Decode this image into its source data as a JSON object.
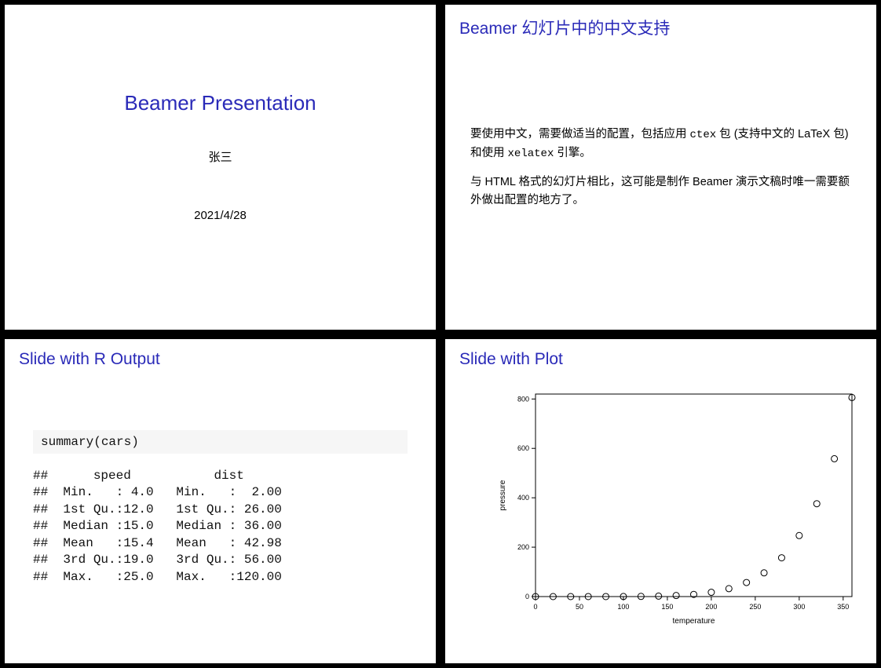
{
  "slide1": {
    "title": "Beamer Presentation",
    "author": "张三",
    "date": "2021/4/28"
  },
  "slide2": {
    "title": "Beamer 幻灯片中的中文支持",
    "para1_a": "要使用中文，需要做适当的配置，包括应用 ",
    "para1_code1": "ctex",
    "para1_b": " 包 (支持中文的 LaTeX 包) 和使用 ",
    "para1_code2": "xelatex",
    "para1_c": " 引擎。",
    "para2": "与 HTML 格式的幻灯片相比，这可能是制作 Beamer 演示文稿时唯一需要额外做出配置的地方了。"
  },
  "slide3": {
    "title": "Slide with R Output",
    "code": "summary(cars)",
    "output": "##      speed           dist\n##  Min.   : 4.0   Min.   :  2.00\n##  1st Qu.:12.0   1st Qu.: 26.00\n##  Median :15.0   Median : 36.00\n##  Mean   :15.4   Mean   : 42.98\n##  3rd Qu.:19.0   3rd Qu.: 56.00\n##  Max.   :25.0   Max.   :120.00"
  },
  "slide4": {
    "title": "Slide with Plot",
    "chart": {
      "type": "scatter",
      "xlabel": "temperature",
      "ylabel": "pressure",
      "xlim": [
        0,
        360
      ],
      "ylim": [
        0,
        820
      ],
      "xticks": [
        0,
        50,
        100,
        150,
        200,
        250,
        300,
        350
      ],
      "yticks": [
        0,
        200,
        400,
        600,
        800
      ],
      "marker": "circle-open",
      "marker_size": 4,
      "marker_color": "#000000",
      "axis_color": "#000000",
      "background_color": "#ffffff",
      "label_fontsize": 10,
      "tick_fontsize": 9,
      "x": [
        0,
        20,
        40,
        60,
        80,
        100,
        120,
        140,
        160,
        180,
        200,
        220,
        240,
        260,
        280,
        300,
        320,
        340,
        360
      ],
      "y": [
        0.0002,
        0.0012,
        0.006,
        0.03,
        0.09,
        0.27,
        0.75,
        1.85,
        4.2,
        8.8,
        17.3,
        32.1,
        57.0,
        96.0,
        157.0,
        247.0,
        376.0,
        558.0,
        806.0
      ]
    }
  },
  "colors": {
    "heading": "#2a2ab8",
    "page_bg": "#000000",
    "slide_bg": "#ffffff",
    "code_bg": "#f6f6f6"
  }
}
